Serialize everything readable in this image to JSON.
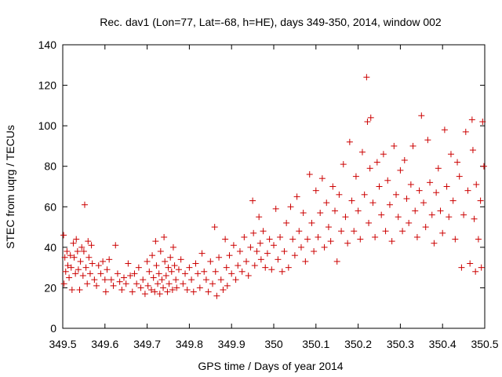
{
  "chart_data": {
    "type": "scatter",
    "title": "Rec. dav1 (Lon=77, Lat=-68, h=HE), days 349-350, 2014, window 002",
    "xlabel": "GPS time / Days of year 2014",
    "ylabel": "STEC from uqrg / TECUs",
    "xlim": [
      349.5,
      350.5
    ],
    "ylim": [
      0,
      140
    ],
    "x_ticks": [
      "349.5",
      "349.6",
      "349.7",
      "349.8",
      "349.9",
      "350",
      "350.1",
      "350.2",
      "350.3",
      "350.4",
      "350.5"
    ],
    "y_ticks": [
      "0",
      "20",
      "40",
      "60",
      "80",
      "100",
      "120",
      "140"
    ],
    "marker": "+",
    "color": "#cc0000",
    "grid": false,
    "series": [
      {
        "name": "STEC",
        "points": [
          [
            349.502,
            46
          ],
          [
            349.503,
            22
          ],
          [
            349.505,
            35
          ],
          [
            349.507,
            28
          ],
          [
            349.51,
            38
          ],
          [
            349.512,
            31
          ],
          [
            349.515,
            25
          ],
          [
            349.518,
            36
          ],
          [
            349.52,
            30
          ],
          [
            349.522,
            19
          ],
          [
            349.525,
            42
          ],
          [
            349.527,
            35
          ],
          [
            349.53,
            27
          ],
          [
            349.532,
            44
          ],
          [
            349.535,
            38
          ],
          [
            349.537,
            29
          ],
          [
            349.54,
            19
          ],
          [
            349.542,
            33
          ],
          [
            349.545,
            40
          ],
          [
            349.548,
            26
          ],
          [
            349.55,
            38
          ],
          [
            349.552,
            61
          ],
          [
            349.555,
            30
          ],
          [
            349.558,
            22
          ],
          [
            349.56,
            43
          ],
          [
            349.562,
            35
          ],
          [
            349.565,
            27
          ],
          [
            349.568,
            41
          ],
          [
            349.57,
            32
          ],
          [
            349.575,
            24
          ],
          [
            349.58,
            21
          ],
          [
            349.585,
            31
          ],
          [
            349.59,
            27
          ],
          [
            349.595,
            33
          ],
          [
            349.6,
            24
          ],
          [
            349.602,
            18
          ],
          [
            349.605,
            29
          ],
          [
            349.61,
            34
          ],
          [
            349.615,
            24
          ],
          [
            349.62,
            21
          ],
          [
            349.625,
            41
          ],
          [
            349.63,
            27
          ],
          [
            349.635,
            23
          ],
          [
            349.64,
            19
          ],
          [
            349.645,
            25
          ],
          [
            349.65,
            22
          ],
          [
            349.655,
            32
          ],
          [
            349.66,
            26
          ],
          [
            349.665,
            18
          ],
          [
            349.67,
            27
          ],
          [
            349.675,
            22
          ],
          [
            349.68,
            30
          ],
          [
            349.685,
            20
          ],
          [
            349.69,
            24
          ],
          [
            349.695,
            17
          ],
          [
            349.7,
            33
          ],
          [
            349.702,
            21
          ],
          [
            349.705,
            28
          ],
          [
            349.71,
            19
          ],
          [
            349.712,
            36
          ],
          [
            349.715,
            25
          ],
          [
            349.718,
            18
          ],
          [
            349.72,
            43
          ],
          [
            349.722,
            31
          ],
          [
            349.725,
            22
          ],
          [
            349.728,
            27
          ],
          [
            349.73,
            17
          ],
          [
            349.732,
            38
          ],
          [
            349.735,
            24
          ],
          [
            349.738,
            20
          ],
          [
            349.74,
            45
          ],
          [
            349.742,
            33
          ],
          [
            349.745,
            26
          ],
          [
            349.748,
            18
          ],
          [
            349.75,
            30
          ],
          [
            349.752,
            22
          ],
          [
            349.755,
            35
          ],
          [
            349.758,
            28
          ],
          [
            349.76,
            19
          ],
          [
            349.762,
            40
          ],
          [
            349.765,
            31
          ],
          [
            349.768,
            24
          ],
          [
            349.77,
            20
          ],
          [
            349.775,
            29
          ],
          [
            349.78,
            34
          ],
          [
            349.785,
            22
          ],
          [
            349.79,
            27
          ],
          [
            349.795,
            19
          ],
          [
            349.8,
            30
          ],
          [
            349.805,
            24
          ],
          [
            349.81,
            18
          ],
          [
            349.815,
            32
          ],
          [
            349.82,
            27
          ],
          [
            349.825,
            20
          ],
          [
            349.83,
            37
          ],
          [
            349.835,
            28
          ],
          [
            349.84,
            24
          ],
          [
            349.845,
            18
          ],
          [
            349.85,
            33
          ],
          [
            349.855,
            22
          ],
          [
            349.86,
            50
          ],
          [
            349.862,
            28
          ],
          [
            349.865,
            16
          ],
          [
            349.87,
            35
          ],
          [
            349.875,
            24
          ],
          [
            349.88,
            19
          ],
          [
            349.885,
            44
          ],
          [
            349.888,
            30
          ],
          [
            349.89,
            21
          ],
          [
            349.895,
            36
          ],
          [
            349.9,
            27
          ],
          [
            349.905,
            41
          ],
          [
            349.91,
            24
          ],
          [
            349.915,
            31
          ],
          [
            349.92,
            38
          ],
          [
            349.925,
            28
          ],
          [
            349.93,
            45
          ],
          [
            349.935,
            33
          ],
          [
            349.94,
            26
          ],
          [
            349.945,
            40
          ],
          [
            349.95,
            63
          ],
          [
            349.952,
            47
          ],
          [
            349.955,
            31
          ],
          [
            349.96,
            38
          ],
          [
            349.965,
            55
          ],
          [
            349.968,
            42
          ],
          [
            349.97,
            34
          ],
          [
            349.975,
            48
          ],
          [
            349.98,
            30
          ],
          [
            349.985,
            37
          ],
          [
            349.99,
            44
          ],
          [
            349.995,
            29
          ],
          [
            350,
            41
          ],
          [
            350.005,
            59
          ],
          [
            350.01,
            34
          ],
          [
            350.015,
            45
          ],
          [
            350.02,
            28
          ],
          [
            350.025,
            38
          ],
          [
            350.03,
            52
          ],
          [
            350.035,
            30
          ],
          [
            350.04,
            60
          ],
          [
            350.045,
            44
          ],
          [
            350.05,
            36
          ],
          [
            350.055,
            65
          ],
          [
            350.06,
            48
          ],
          [
            350.065,
            40
          ],
          [
            350.07,
            57
          ],
          [
            350.075,
            33
          ],
          [
            350.08,
            44
          ],
          [
            350.085,
            76
          ],
          [
            350.09,
            52
          ],
          [
            350.095,
            38
          ],
          [
            350.1,
            68
          ],
          [
            350.105,
            45
          ],
          [
            350.11,
            57
          ],
          [
            350.115,
            74
          ],
          [
            350.12,
            40
          ],
          [
            350.125,
            62
          ],
          [
            350.13,
            50
          ],
          [
            350.135,
            43
          ],
          [
            350.14,
            70
          ],
          [
            350.145,
            58
          ],
          [
            350.15,
            33
          ],
          [
            350.155,
            66
          ],
          [
            350.16,
            48
          ],
          [
            350.165,
            81
          ],
          [
            350.17,
            55
          ],
          [
            350.175,
            42
          ],
          [
            350.18,
            92
          ],
          [
            350.185,
            63
          ],
          [
            350.19,
            48
          ],
          [
            350.195,
            75
          ],
          [
            350.2,
            58
          ],
          [
            350.205,
            44
          ],
          [
            350.21,
            87
          ],
          [
            350.215,
            66
          ],
          [
            350.22,
            124
          ],
          [
            350.222,
            102
          ],
          [
            350.225,
            52
          ],
          [
            350.228,
            79
          ],
          [
            350.23,
            104
          ],
          [
            350.235,
            62
          ],
          [
            350.24,
            45
          ],
          [
            350.245,
            82
          ],
          [
            350.25,
            70
          ],
          [
            350.255,
            56
          ],
          [
            350.26,
            86
          ],
          [
            350.265,
            48
          ],
          [
            350.27,
            73
          ],
          [
            350.275,
            61
          ],
          [
            350.28,
            43
          ],
          [
            350.285,
            90
          ],
          [
            350.29,
            66
          ],
          [
            350.295,
            55
          ],
          [
            350.3,
            78
          ],
          [
            350.305,
            48
          ],
          [
            350.31,
            83
          ],
          [
            350.315,
            64
          ],
          [
            350.32,
            52
          ],
          [
            350.325,
            71
          ],
          [
            350.33,
            90
          ],
          [
            350.335,
            58
          ],
          [
            350.34,
            45
          ],
          [
            350.345,
            68
          ],
          [
            350.35,
            105
          ],
          [
            350.355,
            62
          ],
          [
            350.36,
            50
          ],
          [
            350.365,
            93
          ],
          [
            350.37,
            72
          ],
          [
            350.375,
            56
          ],
          [
            350.38,
            42
          ],
          [
            350.385,
            67
          ],
          [
            350.39,
            79
          ],
          [
            350.395,
            58
          ],
          [
            350.4,
            47
          ],
          [
            350.405,
            98
          ],
          [
            350.41,
            70
          ],
          [
            350.415,
            55
          ],
          [
            350.42,
            86
          ],
          [
            350.425,
            63
          ],
          [
            350.43,
            44
          ],
          [
            350.435,
            82
          ],
          [
            350.44,
            75
          ],
          [
            350.445,
            30
          ],
          [
            350.45,
            56
          ],
          [
            350.455,
            97
          ],
          [
            350.46,
            68
          ],
          [
            350.465,
            32
          ],
          [
            350.47,
            103
          ],
          [
            350.472,
            88
          ],
          [
            350.475,
            54
          ],
          [
            350.478,
            28
          ],
          [
            350.48,
            71
          ],
          [
            350.485,
            44
          ],
          [
            350.49,
            63
          ],
          [
            350.492,
            30
          ],
          [
            350.495,
            102
          ],
          [
            350.498,
            80
          ]
        ]
      }
    ]
  }
}
